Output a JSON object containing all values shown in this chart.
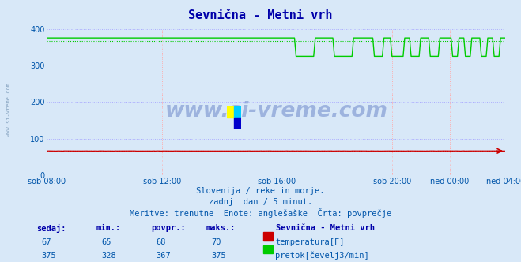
{
  "title": "Sevnična - Metni vrh",
  "bg_color": "#d8e8f8",
  "plot_bg_color": "#d8e8f8",
  "title_color": "#0000aa",
  "text_color": "#0055aa",
  "xlabel_color": "#0055aa",
  "ylim": [
    0,
    400
  ],
  "yticks": [
    0,
    100,
    200,
    300,
    400
  ],
  "n_points": 288,
  "temp_base": 67,
  "temp_color": "#cc0000",
  "flow_color": "#00cc00",
  "flow_avg": 367,
  "flow_max": 375,
  "subtitle1": "Slovenija / reke in morje.",
  "subtitle2": "zadnji dan / 5 minut.",
  "subtitle3": "Meritve: trenutne  Enote: anglešaške  Črta: povprečje",
  "footer_headers": [
    "sedaj:",
    "min.:",
    "povpr.:",
    "maks.:"
  ],
  "temp_values": [
    67,
    65,
    68,
    70
  ],
  "flow_values": [
    375,
    328,
    367,
    375
  ],
  "legend_title": "Sevnična - Metni vrh",
  "legend_temp": "temperatura[F]",
  "legend_flow": "pretok[čevelj3/min]",
  "xtick_labels": [
    "sob 08:00",
    "sob 12:00",
    "sob 16:00",
    "sob 20:00",
    "ned 00:00",
    "ned 04:00"
  ],
  "xtick_positions": [
    0,
    72,
    144,
    216,
    252,
    287
  ],
  "watermark": "www.si-vreme.com",
  "side_text": "www.si-vreme.com"
}
